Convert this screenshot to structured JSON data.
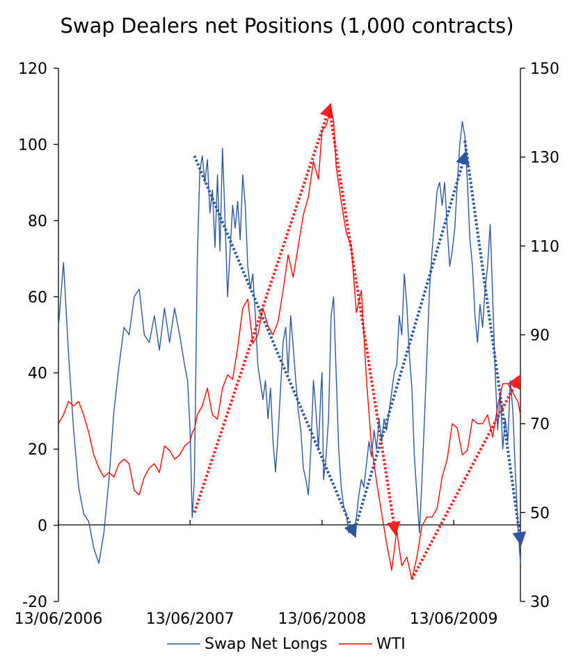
{
  "chart_data": {
    "type": "line",
    "title": "Swap Dealers net Positions (1,000 contracts)",
    "x_tick_labels": [
      "13/06/2006",
      "13/06/2007",
      "13/06/2008",
      "13/06/2009"
    ],
    "x_range": [
      "2006-06-13",
      "2009-12-15"
    ],
    "y_left": {
      "ticks": [
        "120",
        "100",
        "80",
        "60",
        "40",
        "20",
        "0",
        "-20"
      ],
      "range": [
        -20,
        120
      ]
    },
    "y_right": {
      "ticks": [
        "150",
        "130",
        "110",
        "90",
        "70",
        "50",
        "30"
      ],
      "range": [
        30,
        150
      ]
    },
    "legend": {
      "position": "bottom",
      "entries": [
        "Swap Net Longs",
        "WTI"
      ]
    },
    "colors": {
      "swap": "#2e56a0",
      "wti": "#ff0000",
      "trend_blue": "#2e56a0",
      "trend_red": "#ff2020"
    },
    "series": [
      {
        "name": "Swap Net Longs",
        "axis": "left",
        "points": [
          [
            "2006-06-13",
            52
          ],
          [
            "2006-06-27",
            69
          ],
          [
            "2006-07-11",
            45
          ],
          [
            "2006-07-25",
            25
          ],
          [
            "2006-08-08",
            10
          ],
          [
            "2006-08-22",
            3
          ],
          [
            "2006-09-05",
            1
          ],
          [
            "2006-09-19",
            -6
          ],
          [
            "2006-10-03",
            -10
          ],
          [
            "2006-10-17",
            -2
          ],
          [
            "2006-10-31",
            12
          ],
          [
            "2006-11-14",
            30
          ],
          [
            "2006-11-28",
            42
          ],
          [
            "2006-12-12",
            52
          ],
          [
            "2006-12-26",
            50
          ],
          [
            "2007-01-09",
            60
          ],
          [
            "2007-01-23",
            62
          ],
          [
            "2007-02-06",
            50
          ],
          [
            "2007-02-20",
            48
          ],
          [
            "2007-03-06",
            55
          ],
          [
            "2007-03-20",
            46
          ],
          [
            "2007-04-03",
            57
          ],
          [
            "2007-04-17",
            48
          ],
          [
            "2007-05-01",
            57
          ],
          [
            "2007-05-15",
            50
          ],
          [
            "2007-05-29",
            42
          ],
          [
            "2007-06-06",
            38
          ],
          [
            "2007-06-13",
            25
          ],
          [
            "2007-06-19",
            2
          ],
          [
            "2007-06-25",
            12
          ],
          [
            "2007-07-03",
            70
          ],
          [
            "2007-07-10",
            93
          ],
          [
            "2007-07-17",
            97
          ],
          [
            "2007-07-24",
            90
          ],
          [
            "2007-07-31",
            96
          ],
          [
            "2007-08-07",
            82
          ],
          [
            "2007-08-14",
            88
          ],
          [
            "2007-08-21",
            73
          ],
          [
            "2007-08-28",
            92
          ],
          [
            "2007-09-04",
            72
          ],
          [
            "2007-09-11",
            99
          ],
          [
            "2007-09-18",
            80
          ],
          [
            "2007-09-25",
            60
          ],
          [
            "2007-10-02",
            72
          ],
          [
            "2007-10-09",
            84
          ],
          [
            "2007-10-16",
            78
          ],
          [
            "2007-10-23",
            85
          ],
          [
            "2007-10-30",
            75
          ],
          [
            "2007-11-06",
            92
          ],
          [
            "2007-11-13",
            84
          ],
          [
            "2007-11-20",
            68
          ],
          [
            "2007-11-27",
            62
          ],
          [
            "2007-12-04",
            66
          ],
          [
            "2007-12-11",
            55
          ],
          [
            "2007-12-18",
            42
          ],
          [
            "2008-01-01",
            33
          ],
          [
            "2008-01-08",
            38
          ],
          [
            "2008-01-15",
            28
          ],
          [
            "2008-01-22",
            36
          ],
          [
            "2008-01-29",
            22
          ],
          [
            "2008-02-05",
            14
          ],
          [
            "2008-02-12",
            24
          ],
          [
            "2008-02-19",
            36
          ],
          [
            "2008-02-26",
            48
          ],
          [
            "2008-03-04",
            52
          ],
          [
            "2008-03-11",
            40
          ],
          [
            "2008-03-18",
            55
          ],
          [
            "2008-03-25",
            47
          ],
          [
            "2008-04-01",
            38
          ],
          [
            "2008-04-08",
            30
          ],
          [
            "2008-04-15",
            25
          ],
          [
            "2008-04-22",
            15
          ],
          [
            "2008-04-29",
            12
          ],
          [
            "2008-05-06",
            8
          ],
          [
            "2008-05-13",
            20
          ],
          [
            "2008-05-20",
            38
          ],
          [
            "2008-05-27",
            30
          ],
          [
            "2008-06-03",
            20
          ],
          [
            "2008-06-10",
            36
          ],
          [
            "2008-06-13",
            40
          ],
          [
            "2008-06-17",
            12
          ],
          [
            "2008-06-24",
            18
          ],
          [
            "2008-07-01",
            28
          ],
          [
            "2008-07-08",
            55
          ],
          [
            "2008-07-15",
            60
          ],
          [
            "2008-07-22",
            40
          ],
          [
            "2008-07-29",
            20
          ],
          [
            "2008-08-05",
            10
          ],
          [
            "2008-08-12",
            5
          ],
          [
            "2008-08-19",
            3
          ],
          [
            "2008-08-26",
            -2
          ],
          [
            "2008-09-02",
            0
          ],
          [
            "2008-09-09",
            -2
          ],
          [
            "2008-09-16",
            2
          ],
          [
            "2008-09-23",
            8
          ],
          [
            "2008-09-30",
            12
          ],
          [
            "2008-10-07",
            10
          ],
          [
            "2008-10-14",
            16
          ],
          [
            "2008-10-21",
            22
          ],
          [
            "2008-10-28",
            18
          ],
          [
            "2008-11-04",
            25
          ],
          [
            "2008-11-11",
            20
          ],
          [
            "2008-11-18",
            28
          ],
          [
            "2008-11-25",
            22
          ],
          [
            "2008-12-02",
            28
          ],
          [
            "2008-12-09",
            25
          ],
          [
            "2008-12-16",
            30
          ],
          [
            "2008-12-23",
            35
          ],
          [
            "2008-12-30",
            40
          ],
          [
            "2009-01-06",
            42
          ],
          [
            "2009-01-13",
            55
          ],
          [
            "2009-01-20",
            50
          ],
          [
            "2009-01-27",
            66
          ],
          [
            "2009-02-03",
            58
          ],
          [
            "2009-02-10",
            45
          ],
          [
            "2009-02-17",
            36
          ],
          [
            "2009-02-24",
            18
          ],
          [
            "2009-03-03",
            8
          ],
          [
            "2009-03-10",
            -2
          ],
          [
            "2009-03-17",
            12
          ],
          [
            "2009-03-24",
            28
          ],
          [
            "2009-03-31",
            45
          ],
          [
            "2009-04-07",
            62
          ],
          [
            "2009-04-14",
            72
          ],
          [
            "2009-04-21",
            80
          ],
          [
            "2009-04-28",
            88
          ],
          [
            "2009-05-05",
            90
          ],
          [
            "2009-05-12",
            84
          ],
          [
            "2009-05-19",
            90
          ],
          [
            "2009-05-26",
            78
          ],
          [
            "2009-06-02",
            68
          ],
          [
            "2009-06-09",
            72
          ],
          [
            "2009-06-16",
            78
          ],
          [
            "2009-06-23",
            90
          ],
          [
            "2009-06-30",
            100
          ],
          [
            "2009-07-07",
            106
          ],
          [
            "2009-07-14",
            102
          ],
          [
            "2009-07-21",
            90
          ],
          [
            "2009-07-28",
            75
          ],
          [
            "2009-08-04",
            68
          ],
          [
            "2009-08-11",
            55
          ],
          [
            "2009-08-18",
            48
          ],
          [
            "2009-08-25",
            58
          ],
          [
            "2009-09-01",
            52
          ],
          [
            "2009-09-08",
            62
          ],
          [
            "2009-09-15",
            68
          ],
          [
            "2009-09-22",
            79
          ],
          [
            "2009-09-29",
            60
          ],
          [
            "2009-10-06",
            40
          ],
          [
            "2009-10-13",
            25
          ],
          [
            "2009-10-20",
            35
          ],
          [
            "2009-10-27",
            20
          ],
          [
            "2009-11-03",
            28
          ],
          [
            "2009-11-10",
            22
          ],
          [
            "2009-11-17",
            38
          ],
          [
            "2009-11-24",
            30
          ],
          [
            "2009-12-01",
            14
          ],
          [
            "2009-12-08",
            0
          ],
          [
            "2009-12-15",
            -10
          ]
        ]
      },
      {
        "name": "WTI",
        "axis": "right",
        "points": [
          [
            "2006-06-13",
            70
          ],
          [
            "2006-06-27",
            72
          ],
          [
            "2006-07-11",
            75
          ],
          [
            "2006-07-25",
            74
          ],
          [
            "2006-08-08",
            75
          ],
          [
            "2006-08-22",
            72
          ],
          [
            "2006-09-05",
            68
          ],
          [
            "2006-09-19",
            63
          ],
          [
            "2006-10-03",
            60
          ],
          [
            "2006-10-17",
            58
          ],
          [
            "2006-10-31",
            59
          ],
          [
            "2006-11-14",
            58
          ],
          [
            "2006-11-28",
            61
          ],
          [
            "2006-12-12",
            62
          ],
          [
            "2006-12-26",
            61
          ],
          [
            "2007-01-09",
            55
          ],
          [
            "2007-01-23",
            54
          ],
          [
            "2007-02-06",
            58
          ],
          [
            "2007-02-20",
            60
          ],
          [
            "2007-03-06",
            61
          ],
          [
            "2007-03-20",
            59
          ],
          [
            "2007-04-03",
            65
          ],
          [
            "2007-04-17",
            64
          ],
          [
            "2007-05-01",
            62
          ],
          [
            "2007-05-15",
            63
          ],
          [
            "2007-05-29",
            65
          ],
          [
            "2007-06-13",
            66
          ],
          [
            "2007-06-19",
            68
          ],
          [
            "2007-06-26",
            69
          ],
          [
            "2007-07-03",
            72
          ],
          [
            "2007-07-17",
            74
          ],
          [
            "2007-07-31",
            78
          ],
          [
            "2007-08-14",
            72
          ],
          [
            "2007-08-28",
            71
          ],
          [
            "2007-09-11",
            78
          ],
          [
            "2007-09-25",
            81
          ],
          [
            "2007-10-09",
            80
          ],
          [
            "2007-10-23",
            87
          ],
          [
            "2007-11-06",
            96
          ],
          [
            "2007-11-20",
            98
          ],
          [
            "2007-12-04",
            88
          ],
          [
            "2007-12-18",
            90
          ],
          [
            "2008-01-01",
            96
          ],
          [
            "2008-01-15",
            92
          ],
          [
            "2008-01-29",
            90
          ],
          [
            "2008-02-12",
            93
          ],
          [
            "2008-02-26",
            100
          ],
          [
            "2008-03-11",
            108
          ],
          [
            "2008-03-25",
            103
          ],
          [
            "2008-04-08",
            110
          ],
          [
            "2008-04-22",
            117
          ],
          [
            "2008-05-06",
            121
          ],
          [
            "2008-05-20",
            129
          ],
          [
            "2008-06-03",
            125
          ],
          [
            "2008-06-13",
            136
          ],
          [
            "2008-06-24",
            137
          ],
          [
            "2008-07-08",
            141
          ],
          [
            "2008-07-15",
            138
          ],
          [
            "2008-07-22",
            128
          ],
          [
            "2008-08-05",
            120
          ],
          [
            "2008-08-19",
            113
          ],
          [
            "2008-09-02",
            110
          ],
          [
            "2008-09-16",
            95
          ],
          [
            "2008-09-30",
            100
          ],
          [
            "2008-10-14",
            80
          ],
          [
            "2008-10-28",
            65
          ],
          [
            "2008-11-11",
            57
          ],
          [
            "2008-11-25",
            50
          ],
          [
            "2008-12-09",
            43
          ],
          [
            "2008-12-23",
            37
          ],
          [
            "2009-01-06",
            46
          ],
          [
            "2009-01-20",
            38
          ],
          [
            "2009-02-03",
            40
          ],
          [
            "2009-02-17",
            35
          ],
          [
            "2009-03-03",
            40
          ],
          [
            "2009-03-17",
            47
          ],
          [
            "2009-03-31",
            49
          ],
          [
            "2009-04-14",
            49
          ],
          [
            "2009-04-28",
            51
          ],
          [
            "2009-05-12",
            58
          ],
          [
            "2009-05-26",
            62
          ],
          [
            "2009-06-09",
            70
          ],
          [
            "2009-06-23",
            69
          ],
          [
            "2009-07-07",
            63
          ],
          [
            "2009-07-21",
            64
          ],
          [
            "2009-08-04",
            71
          ],
          [
            "2009-08-18",
            70
          ],
          [
            "2009-09-01",
            70
          ],
          [
            "2009-09-15",
            72
          ],
          [
            "2009-09-29",
            67
          ],
          [
            "2009-10-13",
            74
          ],
          [
            "2009-10-27",
            79
          ],
          [
            "2009-11-10",
            79
          ],
          [
            "2009-11-24",
            77
          ],
          [
            "2009-12-08",
            75
          ],
          [
            "2009-12-15",
            72
          ]
        ]
      }
    ],
    "trend_arrows": [
      {
        "color": "blue",
        "axis": "left",
        "from": [
          "2007-06-25",
          97
        ],
        "to": [
          "2008-09-09",
          -2
        ]
      },
      {
        "color": "blue",
        "axis": "left",
        "from": [
          "2008-09-09",
          -2
        ],
        "to": [
          "2009-07-14",
          97
        ]
      },
      {
        "color": "blue",
        "axis": "left",
        "from": [
          "2009-07-14",
          101
        ],
        "to": [
          "2009-12-15",
          -4
        ]
      },
      {
        "color": "red",
        "axis": "right",
        "from": [
          "2007-06-25",
          50
        ],
        "to": [
          "2008-07-03",
          141
        ]
      },
      {
        "color": "red",
        "axis": "right",
        "from": [
          "2008-07-03",
          141
        ],
        "to": [
          "2009-01-01",
          46
        ]
      },
      {
        "color": "red",
        "axis": "right",
        "from": [
          "2009-02-17",
          35
        ],
        "to": [
          "2009-12-08",
          80
        ]
      }
    ]
  }
}
